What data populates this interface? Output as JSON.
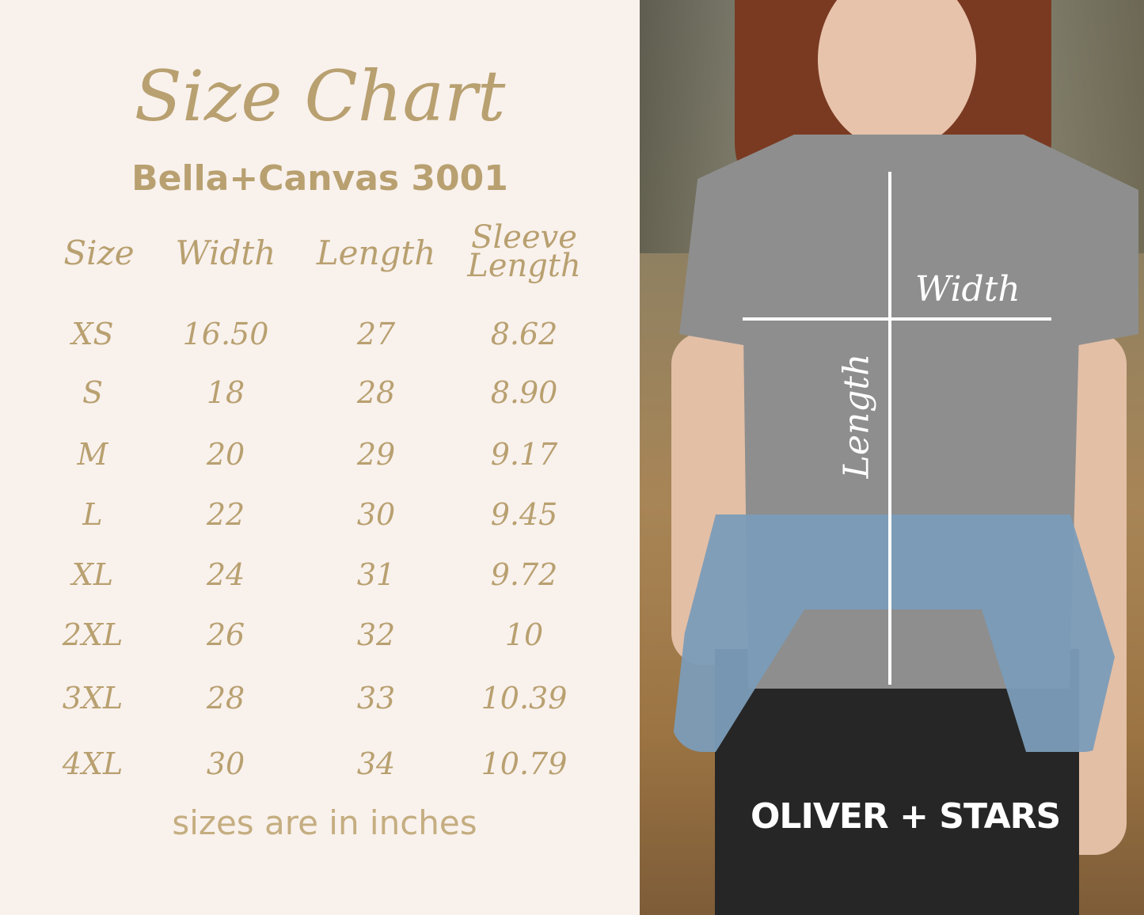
{
  "title": "Size Chart",
  "subtitle": "Bella+Canvas 3001",
  "columns": [
    "Size",
    "Width",
    "Length",
    "Sleeve Length"
  ],
  "rows": [
    [
      "XS",
      "16.50",
      "27",
      "8.62"
    ],
    [
      "S",
      "18",
      "28",
      "8.90"
    ],
    [
      "M",
      "20",
      "29",
      "9.17"
    ],
    [
      "L",
      "22",
      "30",
      "9.45"
    ],
    [
      "XL",
      "24",
      "31",
      "9.72"
    ],
    [
      "2XL",
      "26",
      "32",
      "10"
    ],
    [
      "3XL",
      "28",
      "33",
      "10.39"
    ],
    [
      "4XL",
      "30",
      "34",
      "10.79"
    ]
  ],
  "note": "sizes are in inches",
  "photo": {
    "width_label": "Width",
    "length_label": "Length",
    "brand": "OLIVER + STARS"
  },
  "colors": {
    "background": "#f9f1ec",
    "text": "#b8a070",
    "overlay": "#ffffff"
  }
}
